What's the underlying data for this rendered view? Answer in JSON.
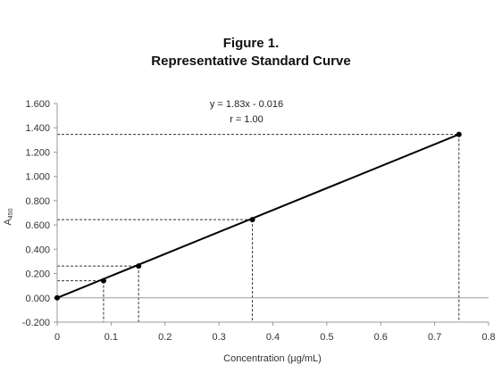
{
  "figure": {
    "title_line1": "Figure 1.",
    "title_line2": "Representative Standard Curve"
  },
  "chart_data": {
    "type": "scatter",
    "title": "Representative Standard Curve",
    "xlabel": "Concentration (µg/mL)",
    "ylabel": "A",
    "ylabel_sub": "450",
    "xlim": [
      0,
      0.8
    ],
    "ylim": [
      -0.2,
      1.6
    ],
    "x_ticks": [
      "0",
      "0.1",
      "0.2",
      "0.3",
      "0.4",
      "0.5",
      "0.6",
      "0.7",
      "0.8"
    ],
    "y_ticks": [
      "-0.200",
      "0.000",
      "0.200",
      "0.400",
      "0.600",
      "0.800",
      "1.000",
      "1.200",
      "1.400",
      "1.600"
    ],
    "x_tick_values": [
      0,
      0.1,
      0.2,
      0.3,
      0.4,
      0.5,
      0.6,
      0.7,
      0.8
    ],
    "y_tick_values": [
      -0.2,
      0,
      0.2,
      0.4,
      0.6,
      0.8,
      1.0,
      1.2,
      1.4,
      1.6
    ],
    "points": [
      {
        "x": 0,
        "y": 0.0
      },
      {
        "x": 0.086,
        "y": 0.141
      },
      {
        "x": 0.151,
        "y": 0.262
      },
      {
        "x": 0.362,
        "y": 0.644
      },
      {
        "x": 0.745,
        "y": 1.346
      }
    ],
    "fit_line": {
      "x_start": 0,
      "y_start": 0.0,
      "x_end": 0.745,
      "y_end": 1.346
    },
    "equation": "y = 1.83x - 0.016",
    "r_value": "r = 1.00",
    "grid": false,
    "colors": {
      "line": "#000000",
      "guide": "#333333",
      "axis": "#999999"
    }
  }
}
